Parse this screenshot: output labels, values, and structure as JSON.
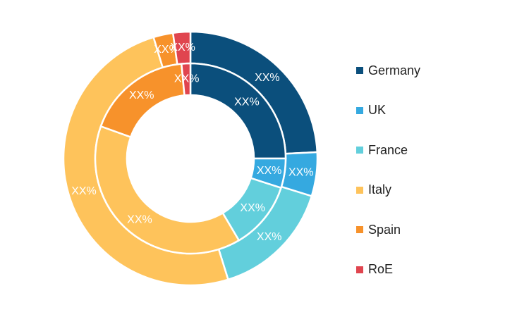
{
  "chart_data": {
    "type": "pie",
    "subtype": "nested-donut",
    "categories": [
      "Germany",
      "UK",
      "France",
      "Italy",
      "Spain",
      "RoE"
    ],
    "colors": [
      "#0b4f7c",
      "#35a9e0",
      "#62cfdc",
      "#fec35b",
      "#f7922b",
      "#e0454f"
    ],
    "series": [
      {
        "ring": "outer",
        "values": [
          24.2,
          5.6,
          15.4,
          50.1,
          2.5,
          2.2
        ],
        "labels": [
          "XX%",
          "XX%",
          "XX%",
          "XX%",
          "XX%",
          "XX%"
        ]
      },
      {
        "ring": "inner",
        "values": [
          25.0,
          5.0,
          11.5,
          39.0,
          18.0,
          1.5
        ],
        "labels": [
          "XX%",
          "XX%",
          "XX%",
          "XX%",
          "XX%",
          "XX%"
        ]
      }
    ],
    "legend_position": "right"
  }
}
